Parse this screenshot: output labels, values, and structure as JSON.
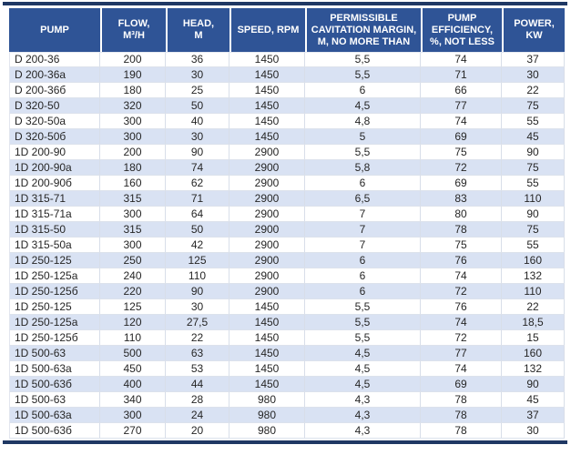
{
  "colors": {
    "header_bg": "#2f5496",
    "header_text": "#ffffff",
    "rule": "#1f3864",
    "row_bg": "#ffffff",
    "row_alt_bg": "#d9e2f3",
    "grid_line": "#d8dee9",
    "body_text": "#262626"
  },
  "table": {
    "columns": [
      {
        "id": "pump",
        "label": "PUMP"
      },
      {
        "id": "flow",
        "label": "FLOW,\nM³/H"
      },
      {
        "id": "head",
        "label": "HEAD,\nM"
      },
      {
        "id": "speed",
        "label": "SPEED, RPM"
      },
      {
        "id": "cavitation",
        "label": "PERMISSIBLE\nCAVITATION MARGIN,\nM, NO MORE THAN"
      },
      {
        "id": "efficiency",
        "label": "PUMP\nEFFICIENCY,\n%, NOT LESS"
      },
      {
        "id": "power",
        "label": "POWER,\nKW"
      }
    ],
    "rows": [
      [
        "D 200-36",
        "200",
        "36",
        "1450",
        "5,5",
        "74",
        "37"
      ],
      [
        "D 200-36a",
        "190",
        "30",
        "1450",
        "5,5",
        "71",
        "30"
      ],
      [
        "D 200-36б",
        "180",
        "25",
        "1450",
        "6",
        "66",
        "22"
      ],
      [
        "D 320-50",
        "320",
        "50",
        "1450",
        "4,5",
        "77",
        "75"
      ],
      [
        "D 320-50a",
        "300",
        "40",
        "1450",
        "4,8",
        "74",
        "55"
      ],
      [
        "D 320-50б",
        "300",
        "30",
        "1450",
        "5",
        "69",
        "45"
      ],
      [
        "1D 200-90",
        "200",
        "90",
        "2900",
        "5,5",
        "75",
        "90"
      ],
      [
        "1D 200-90a",
        "180",
        "74",
        "2900",
        "5,8",
        "72",
        "75"
      ],
      [
        "1D 200-90б",
        "160",
        "62",
        "2900",
        "6",
        "69",
        "55"
      ],
      [
        "1D 315-71",
        "315",
        "71",
        "2900",
        "6,5",
        "83",
        "110"
      ],
      [
        "1D 315-71a",
        "300",
        "64",
        "2900",
        "7",
        "80",
        "90"
      ],
      [
        "1D 315-50",
        "315",
        "50",
        "2900",
        "7",
        "78",
        "75"
      ],
      [
        "1D 315-50a",
        "300",
        "42",
        "2900",
        "7",
        "75",
        "55"
      ],
      [
        "1D 250-125",
        "250",
        "125",
        "2900",
        "6",
        "76",
        "160"
      ],
      [
        "1D 250-125a",
        "240",
        "110",
        "2900",
        "6",
        "74",
        "132"
      ],
      [
        "1D 250-125б",
        "220",
        "90",
        "2900",
        "6",
        "72",
        "110"
      ],
      [
        "1D 250-125",
        "125",
        "30",
        "1450",
        "5,5",
        "76",
        "22"
      ],
      [
        "1D 250-125a",
        "120",
        "27,5",
        "1450",
        "5,5",
        "74",
        "18,5"
      ],
      [
        "1D 250-125б",
        "110",
        "22",
        "1450",
        "5,5",
        "72",
        "15"
      ],
      [
        "1D 500-63",
        "500",
        "63",
        "1450",
        "4,5",
        "77",
        "160"
      ],
      [
        "1D 500-63a",
        "450",
        "53",
        "1450",
        "4,5",
        "74",
        "132"
      ],
      [
        "1D 500-63б",
        "400",
        "44",
        "1450",
        "4,5",
        "69",
        "90"
      ],
      [
        "1D 500-63",
        "340",
        "28",
        "980",
        "4,3",
        "78",
        "45"
      ],
      [
        "1D 500-63a",
        "300",
        "24",
        "980",
        "4,3",
        "78",
        "37"
      ],
      [
        "1D 500-63б",
        "270",
        "20",
        "980",
        "4,3",
        "78",
        "30"
      ]
    ]
  }
}
